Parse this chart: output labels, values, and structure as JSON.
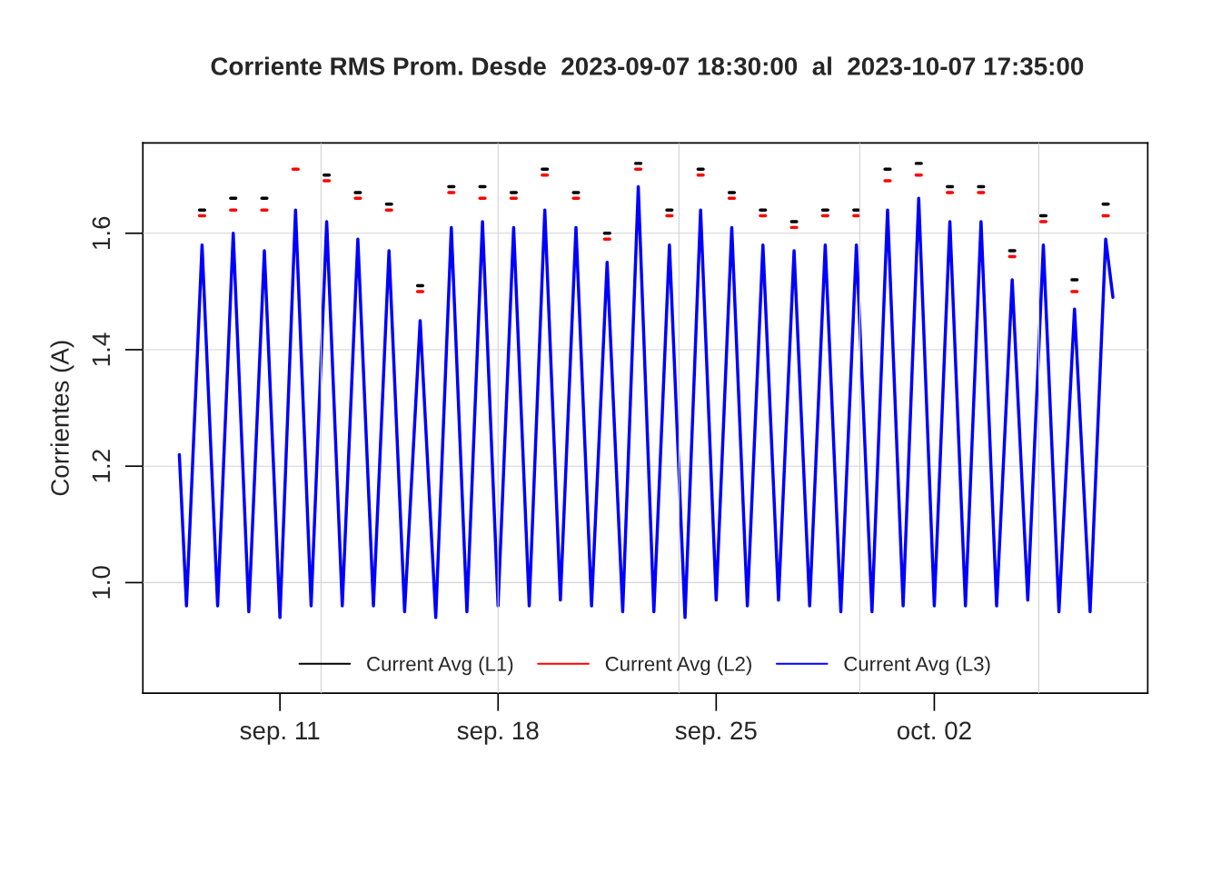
{
  "chart_data": {
    "type": "line",
    "title": "Corriente RMS Prom. Desde  2023-09-07 18:30:00  al  2023-10-07 17:35:00",
    "ylabel": "Corrientes (A)",
    "x": [
      "2023-09-07T18:30",
      "2023-09-08T00:00",
      "2023-09-08T12:00",
      "2023-09-09T00:00",
      "2023-09-09T12:00",
      "2023-09-10T00:00",
      "2023-09-10T12:00",
      "2023-09-11T00:00",
      "2023-09-11T12:00",
      "2023-09-12T00:00",
      "2023-09-12T12:00",
      "2023-09-13T00:00",
      "2023-09-13T12:00",
      "2023-09-14T00:00",
      "2023-09-14T12:00",
      "2023-09-15T00:00",
      "2023-09-15T12:00",
      "2023-09-16T00:00",
      "2023-09-16T12:00",
      "2023-09-17T00:00",
      "2023-09-17T12:00",
      "2023-09-18T00:00",
      "2023-09-18T12:00",
      "2023-09-19T00:00",
      "2023-09-19T12:00",
      "2023-09-20T00:00",
      "2023-09-20T12:00",
      "2023-09-21T00:00",
      "2023-09-21T12:00",
      "2023-09-22T00:00",
      "2023-09-22T12:00",
      "2023-09-23T00:00",
      "2023-09-23T12:00",
      "2023-09-24T00:00",
      "2023-09-24T12:00",
      "2023-09-25T00:00",
      "2023-09-25T12:00",
      "2023-09-26T00:00",
      "2023-09-26T12:00",
      "2023-09-27T00:00",
      "2023-09-27T12:00",
      "2023-09-28T00:00",
      "2023-09-28T12:00",
      "2023-09-29T00:00",
      "2023-09-29T12:00",
      "2023-09-30T00:00",
      "2023-09-30T12:00",
      "2023-10-01T00:00",
      "2023-10-01T12:00",
      "2023-10-02T00:00",
      "2023-10-02T12:00",
      "2023-10-03T00:00",
      "2023-10-03T12:00",
      "2023-10-04T00:00",
      "2023-10-04T12:00",
      "2023-10-05T00:00",
      "2023-10-05T12:00",
      "2023-10-06T00:00",
      "2023-10-06T12:00",
      "2023-10-07T00:00",
      "2023-10-07T12:00",
      "2023-10-07T17:35"
    ],
    "series": [
      {
        "name": "Current Avg (L1)",
        "color": "#000000",
        "x": [
          "2023-09-08T10:00",
          "2023-09-08T14:00",
          "2023-09-08T18:00",
          "2023-09-09T10:00",
          "2023-09-09T14:00",
          "2023-09-09T18:00",
          "2023-09-10T10:00",
          "2023-09-10T14:00",
          "2023-09-10T18:00",
          "2023-09-11T10:00",
          "2023-09-11T14:00",
          "2023-09-11T18:00",
          "2023-09-12T10:00",
          "2023-09-12T14:00",
          "2023-09-12T18:00",
          "2023-09-13T10:00",
          "2023-09-13T14:00",
          "2023-09-13T18:00",
          "2023-09-14T10:00",
          "2023-09-14T14:00",
          "2023-09-14T18:00",
          "2023-09-15T10:00",
          "2023-09-15T14:00",
          "2023-09-15T18:00",
          "2023-09-16T10:00",
          "2023-09-16T14:00",
          "2023-09-16T18:00",
          "2023-09-17T10:00",
          "2023-09-17T14:00",
          "2023-09-17T18:00",
          "2023-09-18T10:00",
          "2023-09-18T14:00",
          "2023-09-18T18:00",
          "2023-09-19T10:00",
          "2023-09-19T14:00",
          "2023-09-19T18:00",
          "2023-09-20T10:00",
          "2023-09-20T14:00",
          "2023-09-20T18:00",
          "2023-09-21T10:00",
          "2023-09-21T14:00",
          "2023-09-21T18:00",
          "2023-09-22T10:00",
          "2023-09-22T14:00",
          "2023-09-22T18:00",
          "2023-09-23T10:00",
          "2023-09-23T14:00",
          "2023-09-23T18:00",
          "2023-09-24T10:00",
          "2023-09-24T14:00",
          "2023-09-24T18:00",
          "2023-09-25T10:00",
          "2023-09-25T14:00",
          "2023-09-25T18:00",
          "2023-09-26T10:00",
          "2023-09-26T14:00",
          "2023-09-26T18:00",
          "2023-09-27T10:00",
          "2023-09-27T14:00",
          "2023-09-27T18:00",
          "2023-09-28T10:00",
          "2023-09-28T14:00",
          "2023-09-28T18:00",
          "2023-09-29T10:00",
          "2023-09-29T14:00",
          "2023-09-29T18:00",
          "2023-09-30T10:00",
          "2023-09-30T14:00",
          "2023-09-30T18:00",
          "2023-10-01T10:00",
          "2023-10-01T14:00",
          "2023-10-01T18:00",
          "2023-10-02T10:00",
          "2023-10-02T14:00",
          "2023-10-02T18:00",
          "2023-10-03T10:00",
          "2023-10-03T14:00",
          "2023-10-03T18:00",
          "2023-10-04T10:00",
          "2023-10-04T14:00",
          "2023-10-04T18:00",
          "2023-10-05T10:00",
          "2023-10-05T14:00",
          "2023-10-05T18:00",
          "2023-10-06T10:00",
          "2023-10-06T14:00",
          "2023-10-06T18:00",
          "2023-10-07T10:00",
          "2023-10-07T14:00"
        ],
        "values": [
          1.64,
          1.64,
          null,
          1.66,
          1.66,
          null,
          1.66,
          1.66,
          null,
          null,
          null,
          null,
          1.7,
          1.7,
          null,
          1.67,
          1.67,
          null,
          1.65,
          1.65,
          null,
          1.51,
          1.51,
          null,
          1.68,
          1.68,
          null,
          1.68,
          1.68,
          null,
          1.67,
          1.67,
          null,
          1.71,
          1.71,
          null,
          1.67,
          1.67,
          null,
          1.6,
          1.6,
          null,
          1.72,
          1.72,
          null,
          1.64,
          1.64,
          null,
          1.71,
          1.71,
          null,
          1.67,
          1.67,
          null,
          1.64,
          1.64,
          null,
          1.62,
          1.62,
          null,
          1.64,
          1.64,
          null,
          1.64,
          1.64,
          null,
          1.71,
          1.71,
          null,
          1.72,
          1.72,
          null,
          1.68,
          1.68,
          null,
          1.68,
          1.68,
          null,
          1.57,
          1.57,
          null,
          1.63,
          1.63,
          null,
          1.52,
          1.52,
          null,
          1.65,
          1.65
        ]
      },
      {
        "name": "Current Avg (L2)",
        "color": "#ff0000",
        "x": [
          "2023-09-08T10:00",
          "2023-09-08T14:00",
          "2023-09-08T18:00",
          "2023-09-09T10:00",
          "2023-09-09T14:00",
          "2023-09-09T18:00",
          "2023-09-10T10:00",
          "2023-09-10T14:00",
          "2023-09-10T18:00",
          "2023-09-11T10:00",
          "2023-09-11T14:00",
          "2023-09-11T18:00",
          "2023-09-12T10:00",
          "2023-09-12T14:00",
          "2023-09-12T18:00",
          "2023-09-13T10:00",
          "2023-09-13T14:00",
          "2023-09-13T18:00",
          "2023-09-14T10:00",
          "2023-09-14T14:00",
          "2023-09-14T18:00",
          "2023-09-15T10:00",
          "2023-09-15T14:00",
          "2023-09-15T18:00",
          "2023-09-16T10:00",
          "2023-09-16T14:00",
          "2023-09-16T18:00",
          "2023-09-17T10:00",
          "2023-09-17T14:00",
          "2023-09-17T18:00",
          "2023-09-18T10:00",
          "2023-09-18T14:00",
          "2023-09-18T18:00",
          "2023-09-19T10:00",
          "2023-09-19T14:00",
          "2023-09-19T18:00",
          "2023-09-20T10:00",
          "2023-09-20T14:00",
          "2023-09-20T18:00",
          "2023-09-21T10:00",
          "2023-09-21T14:00",
          "2023-09-21T18:00",
          "2023-09-22T10:00",
          "2023-09-22T14:00",
          "2023-09-22T18:00",
          "2023-09-23T10:00",
          "2023-09-23T14:00",
          "2023-09-23T18:00",
          "2023-09-24T10:00",
          "2023-09-24T14:00",
          "2023-09-24T18:00",
          "2023-09-25T10:00",
          "2023-09-25T14:00",
          "2023-09-25T18:00",
          "2023-09-26T10:00",
          "2023-09-26T14:00",
          "2023-09-26T18:00",
          "2023-09-27T10:00",
          "2023-09-27T14:00",
          "2023-09-27T18:00",
          "2023-09-28T10:00",
          "2023-09-28T14:00",
          "2023-09-28T18:00",
          "2023-09-29T10:00",
          "2023-09-29T14:00",
          "2023-09-29T18:00",
          "2023-09-30T10:00",
          "2023-09-30T14:00",
          "2023-09-30T18:00",
          "2023-10-01T10:00",
          "2023-10-01T14:00",
          "2023-10-01T18:00",
          "2023-10-02T10:00",
          "2023-10-02T14:00",
          "2023-10-02T18:00",
          "2023-10-03T10:00",
          "2023-10-03T14:00",
          "2023-10-03T18:00",
          "2023-10-04T10:00",
          "2023-10-04T14:00",
          "2023-10-04T18:00",
          "2023-10-05T10:00",
          "2023-10-05T14:00",
          "2023-10-05T18:00",
          "2023-10-06T10:00",
          "2023-10-06T14:00",
          "2023-10-06T18:00",
          "2023-10-07T10:00",
          "2023-10-07T14:00"
        ],
        "values": [
          1.63,
          1.63,
          null,
          1.64,
          1.64,
          null,
          1.64,
          1.64,
          null,
          1.71,
          1.71,
          null,
          1.69,
          1.69,
          null,
          1.66,
          1.66,
          null,
          1.64,
          1.64,
          null,
          1.5,
          1.5,
          null,
          1.67,
          1.67,
          null,
          1.66,
          1.66,
          null,
          1.66,
          1.66,
          null,
          1.7,
          1.7,
          null,
          1.66,
          1.66,
          null,
          1.59,
          1.59,
          null,
          1.71,
          1.71,
          null,
          1.63,
          1.63,
          null,
          1.7,
          1.7,
          null,
          1.66,
          1.66,
          null,
          1.63,
          1.63,
          null,
          1.61,
          1.61,
          null,
          1.63,
          1.63,
          null,
          1.63,
          1.63,
          null,
          1.69,
          1.69,
          null,
          1.7,
          1.7,
          null,
          1.67,
          1.67,
          null,
          1.67,
          1.67,
          null,
          1.56,
          1.56,
          null,
          1.62,
          1.62,
          null,
          1.5,
          1.5,
          null,
          1.63,
          1.63
        ]
      },
      {
        "name": "Current Avg (L3)",
        "color": "#0000ff",
        "values": [
          1.22,
          0.96,
          1.58,
          0.96,
          1.6,
          0.95,
          1.57,
          0.94,
          1.64,
          0.96,
          1.62,
          0.96,
          1.59,
          0.96,
          1.57,
          0.95,
          1.45,
          0.94,
          1.61,
          0.95,
          1.62,
          0.96,
          1.61,
          0.96,
          1.64,
          0.97,
          1.61,
          0.96,
          1.55,
          0.95,
          1.68,
          0.95,
          1.58,
          0.94,
          1.64,
          0.97,
          1.61,
          0.96,
          1.58,
          0.97,
          1.57,
          0.96,
          1.58,
          0.95,
          1.58,
          0.95,
          1.64,
          0.96,
          1.66,
          0.96,
          1.62,
          0.96,
          1.62,
          0.96,
          1.52,
          0.97,
          1.58,
          0.95,
          1.47,
          0.95,
          1.59,
          1.49
        ]
      }
    ],
    "xlim": [
      "2023-09-06T14:24",
      "2023-10-08T20:24"
    ],
    "xticks": [
      {
        "value": "2023-09-11",
        "label": "sep. 11"
      },
      {
        "value": "2023-09-18",
        "label": "sep. 18"
      },
      {
        "value": "2023-09-25",
        "label": "sep. 25"
      },
      {
        "value": "2023-10-02",
        "label": "oct. 02"
      }
    ],
    "ylim": [
      0.81,
      1.755
    ],
    "yticks": [
      {
        "value": 1.0,
        "label": "1.0"
      },
      1.2,
      1.4,
      1.6
    ],
    "grid": "y",
    "ref_lines": [
      {
        "axis": "x",
        "value": "2023-09-12T07:40",
        "color": "#d3d3d3"
      },
      {
        "axis": "x",
        "value": "2023-09-18T00:00",
        "color": "#d3d3d3"
      },
      {
        "axis": "x",
        "value": "2023-09-23T19:20",
        "color": "#d3d3d3"
      },
      {
        "axis": "x",
        "value": "2023-09-29T14:40",
        "color": "#d3d3d3"
      },
      {
        "axis": "x",
        "value": "2023-10-05T08:30",
        "color": "#d3d3d3"
      }
    ],
    "legend": "bottom",
    "line_style": "solid"
  }
}
